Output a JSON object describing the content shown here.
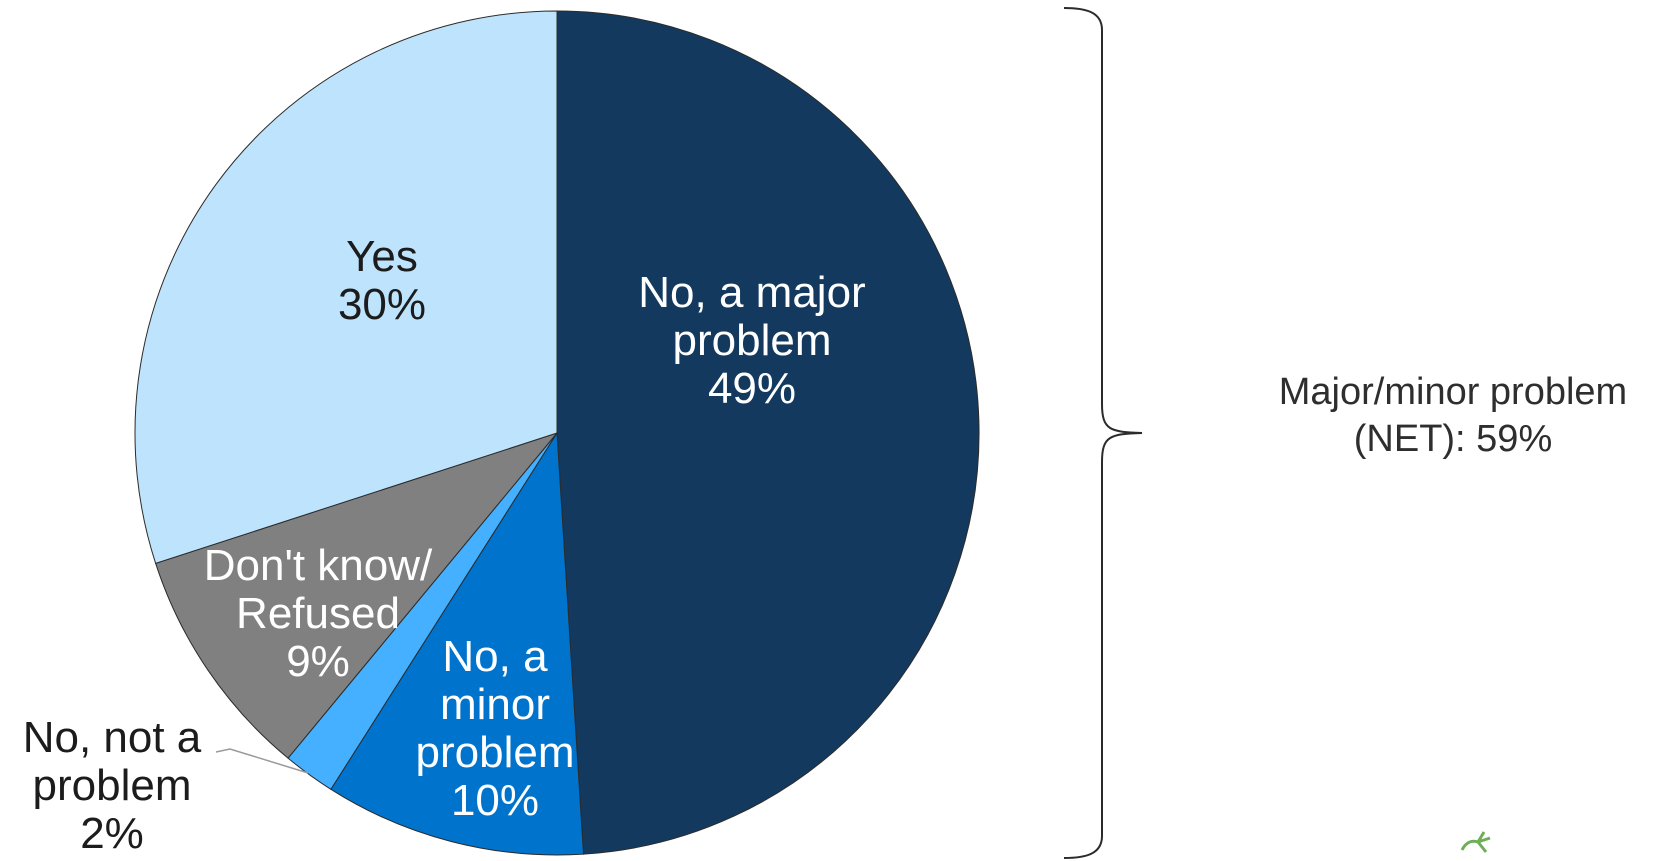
{
  "chart_data": {
    "type": "pie",
    "slices": [
      {
        "label_lines": [
          "No, a major",
          "problem"
        ],
        "value": 49,
        "value_text": "49%",
        "color": "#133a5e"
      },
      {
        "label_lines": [
          "No, a",
          "minor",
          "problem"
        ],
        "value": 10,
        "value_text": "10%",
        "color": "#0073cd"
      },
      {
        "label_lines": [
          "No, not a",
          "problem"
        ],
        "value": 2,
        "value_text": "2%",
        "color": "#45b0ff"
      },
      {
        "label_lines": [
          "Don't know/",
          "Refused"
        ],
        "value": 9,
        "value_text": "9%",
        "color": "#808080"
      },
      {
        "label_lines": [
          "Yes"
        ],
        "value": 30,
        "value_text": "30%",
        "color": "#bee4fd"
      }
    ],
    "start_angle_deg": 0,
    "direction": "clockwise",
    "net_annotation": {
      "lines": [
        "Major/minor problem",
        "(NET): 59%"
      ]
    }
  }
}
